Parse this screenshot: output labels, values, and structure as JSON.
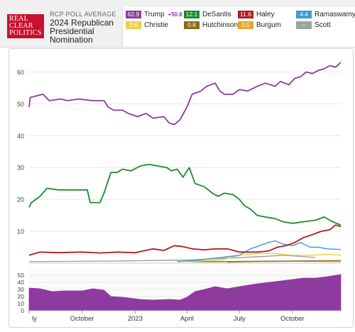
{
  "header": {
    "logo_lines": [
      "REAL",
      "CLEAR",
      "POLITICS"
    ],
    "small_title": "RCP POLL AVERAGE",
    "title": "2024 Republican Presidential Nomination"
  },
  "legend": [
    {
      "name": "Trump",
      "value": "62.9",
      "spread": "+50.8",
      "color": "#8e3a9e"
    },
    {
      "name": "DeSantis",
      "value": "12.1",
      "color": "#1a8a2e"
    },
    {
      "name": "Haley",
      "value": "11.6",
      "color": "#b31b1b"
    },
    {
      "name": "Ramaswamy",
      "value": "4.4",
      "color": "#3c9ad6"
    },
    {
      "name": "Christie",
      "value": "2.6",
      "color": "#f0cf4a"
    },
    {
      "name": "Hutchinson",
      "value": "0.8",
      "color": "#8a6a1c"
    },
    {
      "name": "Burgum",
      "value": "0.5",
      "color": "#e8a52a"
    },
    {
      "name": "Scott",
      "value": "--",
      "color": "#9aa59a"
    }
  ],
  "chart_data": {
    "type": "line",
    "x_axis_labels": [
      "ly",
      "October",
      "2023",
      "April",
      "July",
      "October"
    ],
    "y_ticks": [
      "10",
      "20",
      "30",
      "40",
      "50",
      "60"
    ],
    "ylim": [
      0,
      65
    ],
    "x_range": [
      "2022-07-01",
      "2023-12-24"
    ],
    "series": [
      {
        "name": "Trump",
        "color": "#8e3a9e",
        "points": [
          [
            "2022-07-01",
            49
          ],
          [
            "2022-07-03",
            52
          ],
          [
            "2022-07-25",
            53
          ],
          [
            "2022-08-05",
            51
          ],
          [
            "2022-08-25",
            51.5
          ],
          [
            "2022-09-05",
            51
          ],
          [
            "2022-09-25",
            51.5
          ],
          [
            "2022-10-20",
            51
          ],
          [
            "2022-11-08",
            51
          ],
          [
            "2022-11-15",
            49
          ],
          [
            "2022-11-25",
            48
          ],
          [
            "2022-12-10",
            48
          ],
          [
            "2022-12-20",
            47
          ],
          [
            "2023-01-05",
            46
          ],
          [
            "2023-01-20",
            47
          ],
          [
            "2023-02-01",
            45.5
          ],
          [
            "2023-02-20",
            46
          ],
          [
            "2023-03-01",
            44
          ],
          [
            "2023-03-10",
            43.5
          ],
          [
            "2023-03-20",
            45
          ],
          [
            "2023-04-01",
            49
          ],
          [
            "2023-04-10",
            53
          ],
          [
            "2023-04-25",
            54
          ],
          [
            "2023-05-05",
            55.5
          ],
          [
            "2023-05-20",
            56.5
          ],
          [
            "2023-05-28",
            54
          ],
          [
            "2023-06-05",
            53
          ],
          [
            "2023-06-20",
            53
          ],
          [
            "2023-07-01",
            54.5
          ],
          [
            "2023-07-15",
            54
          ],
          [
            "2023-08-01",
            55.5
          ],
          [
            "2023-08-15",
            56.5
          ],
          [
            "2023-09-01",
            55.5
          ],
          [
            "2023-09-10",
            57
          ],
          [
            "2023-09-25",
            56
          ],
          [
            "2023-10-05",
            58
          ],
          [
            "2023-10-15",
            58.5
          ],
          [
            "2023-10-25",
            60
          ],
          [
            "2023-11-05",
            59.5
          ],
          [
            "2023-11-15",
            60.5
          ],
          [
            "2023-11-25",
            61
          ],
          [
            "2023-12-05",
            62
          ],
          [
            "2023-12-15",
            61.5
          ],
          [
            "2023-12-24",
            63
          ]
        ]
      },
      {
        "name": "DeSantis",
        "color": "#1a8a2e",
        "points": [
          [
            "2022-07-01",
            17.5
          ],
          [
            "2022-07-05",
            19
          ],
          [
            "2022-07-20",
            21
          ],
          [
            "2022-08-01",
            23.5
          ],
          [
            "2022-08-20",
            23
          ],
          [
            "2022-09-20",
            23
          ],
          [
            "2022-10-10",
            23
          ],
          [
            "2022-10-15",
            19
          ],
          [
            "2022-11-01",
            19
          ],
          [
            "2022-11-08",
            22
          ],
          [
            "2022-11-20",
            28.5
          ],
          [
            "2022-12-01",
            28.5
          ],
          [
            "2022-12-10",
            29.5
          ],
          [
            "2022-12-25",
            29
          ],
          [
            "2023-01-10",
            30.5
          ],
          [
            "2023-01-25",
            31
          ],
          [
            "2023-02-10",
            30.5
          ],
          [
            "2023-02-25",
            30
          ],
          [
            "2023-03-05",
            29
          ],
          [
            "2023-03-15",
            29.5
          ],
          [
            "2023-03-25",
            27
          ],
          [
            "2023-04-05",
            30
          ],
          [
            "2023-04-15",
            25
          ],
          [
            "2023-05-01",
            24
          ],
          [
            "2023-05-15",
            22
          ],
          [
            "2023-05-25",
            21
          ],
          [
            "2023-06-05",
            22
          ],
          [
            "2023-06-20",
            21.5
          ],
          [
            "2023-07-01",
            20
          ],
          [
            "2023-07-10",
            18
          ],
          [
            "2023-07-20",
            17
          ],
          [
            "2023-08-01",
            15
          ],
          [
            "2023-08-15",
            14.5
          ],
          [
            "2023-09-01",
            14
          ],
          [
            "2023-09-15",
            13
          ],
          [
            "2023-10-01",
            12.5
          ],
          [
            "2023-10-20",
            13
          ],
          [
            "2023-11-10",
            13.5
          ],
          [
            "2023-11-25",
            14.5
          ],
          [
            "2023-12-10",
            13
          ],
          [
            "2023-12-24",
            12
          ]
        ]
      },
      {
        "name": "Haley",
        "color": "#b31b1b",
        "points": [
          [
            "2022-07-01",
            2.5
          ],
          [
            "2022-07-20",
            3.5
          ],
          [
            "2022-08-20",
            3.3
          ],
          [
            "2022-10-01",
            3.5
          ],
          [
            "2022-11-01",
            3.2
          ],
          [
            "2022-12-01",
            3.5
          ],
          [
            "2023-01-01",
            3.3
          ],
          [
            "2023-02-01",
            4.5
          ],
          [
            "2023-02-20",
            4
          ],
          [
            "2023-03-10",
            5.5
          ],
          [
            "2023-03-25",
            5.2
          ],
          [
            "2023-04-10",
            4.5
          ],
          [
            "2023-05-01",
            4.2
          ],
          [
            "2023-05-20",
            4.5
          ],
          [
            "2023-06-10",
            4.5
          ],
          [
            "2023-07-01",
            3.5
          ],
          [
            "2023-08-01",
            3.5
          ],
          [
            "2023-08-20",
            3.8
          ],
          [
            "2023-09-05",
            5
          ],
          [
            "2023-09-20",
            5.5
          ],
          [
            "2023-10-05",
            6.5
          ],
          [
            "2023-10-20",
            8
          ],
          [
            "2023-11-05",
            9
          ],
          [
            "2023-11-20",
            10
          ],
          [
            "2023-12-05",
            10.5
          ],
          [
            "2023-12-15",
            12
          ],
          [
            "2023-12-24",
            11.5
          ]
        ]
      },
      {
        "name": "Ramaswamy",
        "color": "#3c9ad6",
        "points": [
          [
            "2023-03-15",
            0.5
          ],
          [
            "2023-04-15",
            0.8
          ],
          [
            "2023-05-15",
            1.5
          ],
          [
            "2023-06-10",
            2
          ],
          [
            "2023-07-01",
            2.5
          ],
          [
            "2023-07-20",
            4.5
          ],
          [
            "2023-08-05",
            5.5
          ],
          [
            "2023-08-20",
            6.5
          ],
          [
            "2023-09-01",
            7
          ],
          [
            "2023-09-15",
            6
          ],
          [
            "2023-10-01",
            5.5
          ],
          [
            "2023-10-15",
            6.5
          ],
          [
            "2023-11-01",
            5
          ],
          [
            "2023-11-15",
            5
          ],
          [
            "2023-12-01",
            4.5
          ],
          [
            "2023-12-24",
            4.3
          ]
        ]
      },
      {
        "name": "Christie",
        "color": "#f0cf4a",
        "points": [
          [
            "2023-04-01",
            0.5
          ],
          [
            "2023-06-01",
            1
          ],
          [
            "2023-07-01",
            2.5
          ],
          [
            "2023-08-01",
            3
          ],
          [
            "2023-09-01",
            3
          ],
          [
            "2023-10-01",
            2.5
          ],
          [
            "2023-11-01",
            2.5
          ],
          [
            "2023-12-01",
            2.8
          ],
          [
            "2023-12-24",
            2.5
          ]
        ]
      },
      {
        "name": "Hutchinson",
        "color": "#8a6a1c",
        "points": [
          [
            "2023-04-10",
            0.5
          ],
          [
            "2023-06-01",
            0.5
          ],
          [
            "2023-08-01",
            0.6
          ],
          [
            "2023-10-01",
            0.7
          ],
          [
            "2023-12-24",
            0.8
          ]
        ]
      },
      {
        "name": "Burgum",
        "color": "#e8a52a",
        "points": [
          [
            "2023-06-10",
            0.3
          ],
          [
            "2023-08-01",
            0.5
          ],
          [
            "2023-10-01",
            0.6
          ],
          [
            "2023-12-24",
            0.5
          ]
        ]
      },
      {
        "name": "Scott",
        "color": "#9aa59a",
        "points": [
          [
            "2022-07-01",
            0.5
          ],
          [
            "2022-12-01",
            0.7
          ],
          [
            "2023-04-01",
            1
          ],
          [
            "2023-06-01",
            1.5
          ],
          [
            "2023-08-01",
            2
          ],
          [
            "2023-09-15",
            2.5
          ],
          [
            "2023-11-10",
            1.8
          ]
        ]
      }
    ],
    "spread_panel": {
      "type": "area",
      "color": "#8e3a9e",
      "y_ticks": [
        "0",
        "10",
        "20",
        "30",
        "40",
        "50"
      ],
      "ylim": [
        0,
        55
      ],
      "points": [
        [
          "2022-07-01",
          32
        ],
        [
          "2022-07-20",
          31
        ],
        [
          "2022-08-10",
          27
        ],
        [
          "2022-09-01",
          28
        ],
        [
          "2022-10-01",
          28
        ],
        [
          "2022-10-20",
          31
        ],
        [
          "2022-11-08",
          29
        ],
        [
          "2022-11-20",
          20
        ],
        [
          "2022-12-10",
          19
        ],
        [
          "2023-01-10",
          16
        ],
        [
          "2023-02-01",
          15
        ],
        [
          "2023-03-01",
          16
        ],
        [
          "2023-03-20",
          15
        ],
        [
          "2023-04-01",
          19
        ],
        [
          "2023-04-15",
          27
        ],
        [
          "2023-05-01",
          30
        ],
        [
          "2023-05-20",
          34
        ],
        [
          "2023-06-10",
          31
        ],
        [
          "2023-07-01",
          34
        ],
        [
          "2023-08-01",
          38
        ],
        [
          "2023-09-01",
          41
        ],
        [
          "2023-10-01",
          44
        ],
        [
          "2023-10-20",
          46
        ],
        [
          "2023-11-10",
          46
        ],
        [
          "2023-12-01",
          48
        ],
        [
          "2023-12-24",
          51
        ]
      ]
    }
  }
}
